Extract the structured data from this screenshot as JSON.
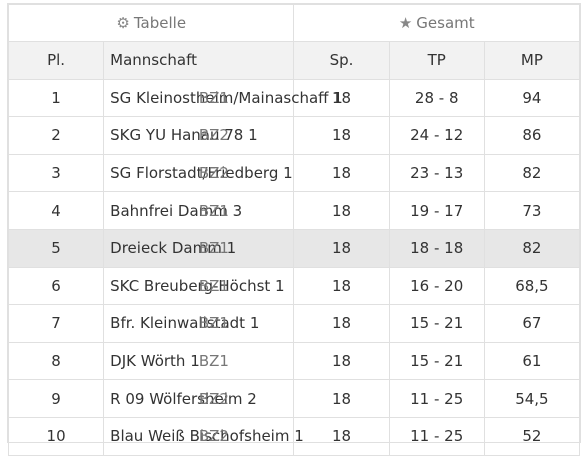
{
  "header": {
    "tabelle": {
      "icon": "gear-icon",
      "label": "Tabelle"
    },
    "gesamt": {
      "icon": "star-icon",
      "label": "Gesamt"
    }
  },
  "columns": {
    "pl": "Pl.",
    "mannschaft": "Mannschaft",
    "sp": "Sp.",
    "tp": "TP",
    "mp": "MP"
  },
  "rows": [
    {
      "pl": "1",
      "name": "SG Kleinostheim/Mainaschaff 1",
      "liga": "BZ1",
      "sp": "18",
      "tp": "28 - 8",
      "mp": "94"
    },
    {
      "pl": "2",
      "name": "SKG YU Hanau 78 1",
      "liga": "BZ2",
      "sp": "18",
      "tp": "24 - 12",
      "mp": "86"
    },
    {
      "pl": "3",
      "name": "SG Florstadt/Friedberg 1",
      "liga": "BZ2",
      "sp": "18",
      "tp": "23 - 13",
      "mp": "82"
    },
    {
      "pl": "4",
      "name": "Bahnfrei Damm 3",
      "liga": "BZ1",
      "sp": "18",
      "tp": "19 - 17",
      "mp": "73"
    },
    {
      "pl": "5",
      "name": "Dreieck Damm 1",
      "liga": "BZ1",
      "sp": "18",
      "tp": "18 - 18",
      "mp": "82"
    },
    {
      "pl": "6",
      "name": "SKC Breuberg-Höchst 1",
      "liga": "BZ1",
      "sp": "18",
      "tp": "16 - 20",
      "mp": "68,5"
    },
    {
      "pl": "7",
      "name": "Bfr. Kleinwallstadt 1",
      "liga": "BZ1",
      "sp": "18",
      "tp": "15 - 21",
      "mp": "67"
    },
    {
      "pl": "8",
      "name": "DJK Wörth 1",
      "liga": "BZ1",
      "sp": "18",
      "tp": "15 - 21",
      "mp": "61"
    },
    {
      "pl": "9",
      "name": "R 09 Wölfersheim 2",
      "liga": "BZ2",
      "sp": "18",
      "tp": "11 - 25",
      "mp": "54,5"
    },
    {
      "pl": "10",
      "name": "Blau Weiß Bischofsheim 1",
      "liga": "BZ2",
      "sp": "18",
      "tp": "11 - 25",
      "mp": "52"
    }
  ],
  "highlight_row": 4
}
